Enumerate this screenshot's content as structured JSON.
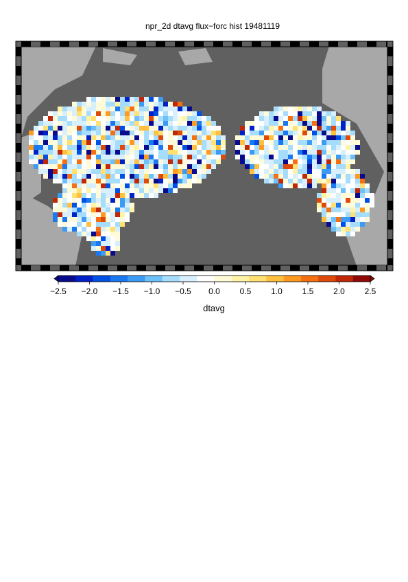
{
  "chart_data": {
    "type": "map",
    "title": "npr_2d dtavg flux−forc hist 19481119",
    "colorbar_label": "dtavg",
    "clim": [
      -2.5,
      2.5
    ],
    "ticks": [
      {
        "value": -2.5,
        "label": "−2.5"
      },
      {
        "value": -2,
        "label": "−2.0"
      },
      {
        "value": -1.5,
        "label": "−1.5"
      },
      {
        "value": -1,
        "label": "−1.0"
      },
      {
        "value": -0.5,
        "label": "−0.5"
      },
      {
        "value": 0,
        "label": "0.0"
      },
      0.5,
      {
        "value": 1,
        "label": "1.0"
      },
      1.5,
      {
        "value": 2,
        "label": "2.0"
      },
      2.5
    ],
    "colors": [
      "#0a0a8c",
      "#0020c8",
      "#0050e6",
      "#1a78f0",
      "#3c9cf5",
      "#6ec0fa",
      "#a6dcfc",
      "#d8effd",
      "#ffffff",
      "#fffbd8",
      "#fff3a6",
      "#ffe070",
      "#ffc040",
      "#ff9a20",
      "#f57010",
      "#e04a08",
      "#c02808",
      "#900a0a"
    ],
    "ocean_color": "#606060",
    "land_color": "#a8a8a8"
  }
}
